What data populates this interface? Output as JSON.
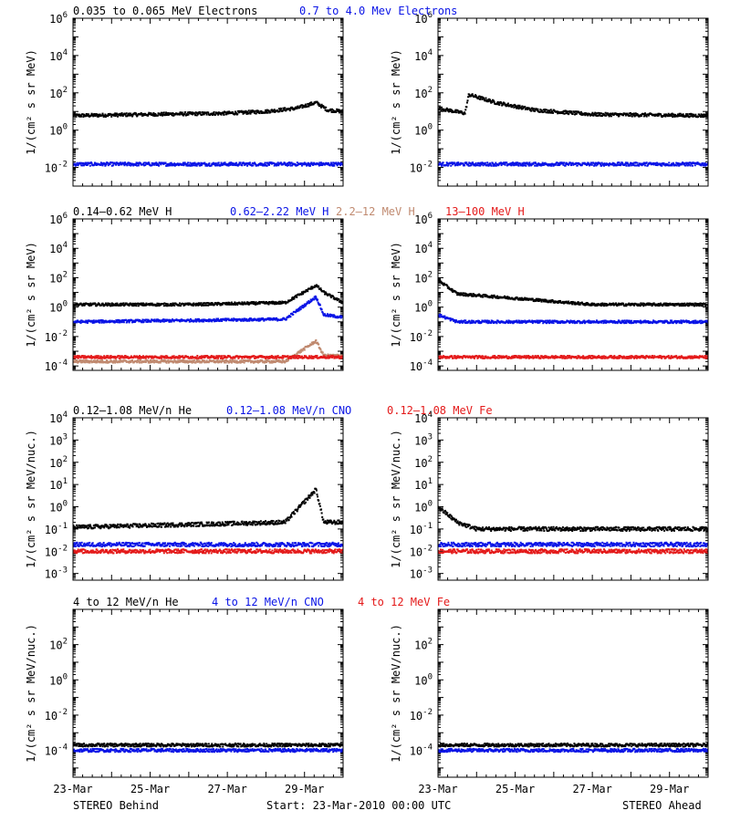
{
  "colors": {
    "black": "#000000",
    "blue": "#0a14e6",
    "tan": "#c08a70",
    "red": "#e41a1a"
  },
  "rows": [
    {
      "labels": [
        {
          "text": "0.035 to 0.065 MeV Electrons",
          "color": "black"
        },
        {
          "text": "0.7 to 4.0 Mev Electrons",
          "color": "blue"
        }
      ],
      "ylabel": "1/(cm² s sr MeV)"
    },
    {
      "labels": [
        {
          "text": "0.14–0.62 MeV H",
          "color": "black"
        },
        {
          "text": "0.62–2.22 MeV H",
          "color": "blue"
        },
        {
          "text": "2.2–12 MeV H",
          "color": "tan"
        },
        {
          "text": "13–100 MeV H",
          "color": "red"
        }
      ],
      "ylabel": "1/(cm² s sr MeV)"
    },
    {
      "labels": [
        {
          "text": "0.12–1.08 MeV/n He",
          "color": "black"
        },
        {
          "text": "0.12–1.08 MeV/n CNO",
          "color": "blue"
        },
        {
          "text": "0.12–1.08 MeV Fe",
          "color": "red"
        }
      ],
      "ylabel": "1/(cm² s sr MeV/nuc.)"
    },
    {
      "labels": [
        {
          "text": "4 to 12 MeV/n He",
          "color": "black"
        },
        {
          "text": "4 to 12 MeV/n CNO",
          "color": "blue"
        },
        {
          "text": "4 to 12 MeV Fe",
          "color": "red"
        }
      ],
      "ylabel": "1/(cm² s sr MeV/nuc.)"
    }
  ],
  "footer": {
    "left": "STEREO Behind",
    "center": "Start: 23-Mar-2010 00:00 UTC",
    "right": "STEREO Ahead"
  },
  "chart_data": [
    {
      "type": "scatter",
      "spacecraft": "STEREO Behind",
      "row": 0,
      "yscale": "log",
      "ylim": [
        0.001,
        1000000
      ],
      "xlim": [
        "23-Mar-2010",
        "30-Mar-2010"
      ],
      "xticks": [
        "23-Mar",
        "25-Mar",
        "27-Mar",
        "29-Mar"
      ],
      "ytick_labels": [
        {
          "v": 0.01,
          "b": "10",
          "e": "-2"
        },
        {
          "v": 1,
          "b": "10",
          "e": "0"
        },
        {
          "v": 100.0,
          "b": "10",
          "e": "2"
        },
        {
          "v": 10000.0,
          "b": "10",
          "e": "4"
        },
        {
          "v": 1000000.0,
          "b": "10",
          "e": "6"
        }
      ],
      "series": [
        {
          "name": "0.035 to 0.065 MeV Electrons",
          "color": "black",
          "points": [
            [
              0,
              6
            ],
            [
              2,
              7
            ],
            [
              4,
              8
            ],
            [
              5,
              10
            ],
            [
              5.8,
              15
            ],
            [
              6.3,
              30
            ],
            [
              6.6,
              12
            ],
            [
              7,
              10
            ]
          ]
        },
        {
          "name": "0.7 to 4.0 Mev Electrons",
          "color": "blue",
          "points": [
            [
              0,
              0.015
            ],
            [
              7,
              0.015
            ]
          ]
        }
      ]
    },
    {
      "type": "scatter",
      "spacecraft": "STEREO Ahead",
      "row": 0,
      "yscale": "log",
      "ylim": [
        0.001,
        1000000
      ],
      "xlim": [
        "23-Mar-2010",
        "30-Mar-2010"
      ],
      "xticks": [
        "23-Mar",
        "25-Mar",
        "27-Mar",
        "29-Mar"
      ],
      "ytick_labels": [
        {
          "v": 0.01,
          "b": "10",
          "e": "-2"
        },
        {
          "v": 1,
          "b": "10",
          "e": "0"
        },
        {
          "v": 100.0,
          "b": "10",
          "e": "2"
        },
        {
          "v": 10000.0,
          "b": "10",
          "e": "4"
        },
        {
          "v": 1000000.0,
          "b": "10",
          "e": "6"
        }
      ],
      "series": [
        {
          "name": "0.035 to 0.065 MeV Electrons",
          "color": "black",
          "points": [
            [
              0,
              15
            ],
            [
              0.7,
              8
            ],
            [
              0.8,
              80
            ],
            [
              1.5,
              30
            ],
            [
              2.5,
              12
            ],
            [
              4,
              7
            ],
            [
              7,
              6
            ]
          ]
        },
        {
          "name": "0.7 to 4.0 Mev Electrons",
          "color": "blue",
          "points": [
            [
              0,
              0.015
            ],
            [
              7,
              0.015
            ]
          ]
        }
      ]
    },
    {
      "type": "scatter",
      "spacecraft": "STEREO Behind",
      "row": 1,
      "yscale": "log",
      "ylim": [
        5e-05,
        1000000
      ],
      "xlim": [
        "23-Mar-2010",
        "30-Mar-2010"
      ],
      "xticks": [
        "23-Mar",
        "25-Mar",
        "27-Mar",
        "29-Mar"
      ],
      "ytick_labels": [
        {
          "v": 0.0001,
          "b": "10",
          "e": "-4"
        },
        {
          "v": 0.01,
          "b": "10",
          "e": "-2"
        },
        {
          "v": 1,
          "b": "10",
          "e": "0"
        },
        {
          "v": 100.0,
          "b": "10",
          "e": "2"
        },
        {
          "v": 10000.0,
          "b": "10",
          "e": "4"
        },
        {
          "v": 1000000.0,
          "b": "10",
          "e": "6"
        }
      ],
      "series": [
        {
          "name": "0.14–0.62 MeV H",
          "color": "black",
          "points": [
            [
              0,
              1.5
            ],
            [
              3,
              1.5
            ],
            [
              5.5,
              2
            ],
            [
              6.3,
              30
            ],
            [
              6.5,
              10
            ],
            [
              7,
              2
            ]
          ]
        },
        {
          "name": "0.62–2.22 MeV H",
          "color": "blue",
          "points": [
            [
              0,
              0.1
            ],
            [
              5.5,
              0.15
            ],
            [
              6.3,
              5
            ],
            [
              6.5,
              0.3
            ],
            [
              7,
              0.2
            ]
          ]
        },
        {
          "name": "2.2–12 MeV H",
          "color": "tan",
          "points": [
            [
              0,
              0.0002
            ],
            [
              5.5,
              0.0002
            ],
            [
              6.3,
              0.005
            ],
            [
              6.5,
              0.0005
            ],
            [
              7,
              0.0005
            ]
          ]
        },
        {
          "name": "13–100 MeV H",
          "color": "red",
          "points": [
            [
              0,
              0.0004
            ],
            [
              7,
              0.0004
            ]
          ]
        }
      ]
    },
    {
      "type": "scatter",
      "spacecraft": "STEREO Ahead",
      "row": 1,
      "yscale": "log",
      "ylim": [
        5e-05,
        1000000
      ],
      "xlim": [
        "23-Mar-2010",
        "30-Mar-2010"
      ],
      "xticks": [
        "23-Mar",
        "25-Mar",
        "27-Mar",
        "29-Mar"
      ],
      "ytick_labels": [
        {
          "v": 0.0001,
          "b": "10",
          "e": "-4"
        },
        {
          "v": 0.01,
          "b": "10",
          "e": "-2"
        },
        {
          "v": 1,
          "b": "10",
          "e": "0"
        },
        {
          "v": 100.0,
          "b": "10",
          "e": "2"
        },
        {
          "v": 10000.0,
          "b": "10",
          "e": "4"
        },
        {
          "v": 1000000.0,
          "b": "10",
          "e": "6"
        }
      ],
      "series": [
        {
          "name": "0.14–0.62 MeV H",
          "color": "black",
          "points": [
            [
              0,
              70
            ],
            [
              0.5,
              8
            ],
            [
              2,
              4
            ],
            [
              4,
              1.5
            ],
            [
              7,
              1.5
            ]
          ]
        },
        {
          "name": "0.62–2.22 MeV H",
          "color": "blue",
          "points": [
            [
              0,
              0.3
            ],
            [
              0.5,
              0.1
            ],
            [
              7,
              0.1
            ]
          ]
        },
        {
          "name": "13–100 MeV H",
          "color": "red",
          "points": [
            [
              0,
              0.0004
            ],
            [
              7,
              0.0004
            ]
          ]
        }
      ]
    },
    {
      "type": "scatter",
      "spacecraft": "STEREO Behind",
      "row": 2,
      "yscale": "log",
      "ylim": [
        0.0005,
        10000
      ],
      "xlim": [
        "23-Mar-2010",
        "30-Mar-2010"
      ],
      "xticks": [
        "23-Mar",
        "25-Mar",
        "27-Mar",
        "29-Mar"
      ],
      "ytick_labels": [
        {
          "v": 0.001,
          "b": "10",
          "e": "-3"
        },
        {
          "v": 0.01,
          "b": "10",
          "e": "-2"
        },
        {
          "v": 0.1,
          "b": "10",
          "e": "-1"
        },
        {
          "v": 1,
          "b": "10",
          "e": "0"
        },
        {
          "v": 10.0,
          "b": "10",
          "e": "1"
        },
        {
          "v": 100.0,
          "b": "10",
          "e": "2"
        },
        {
          "v": 1000.0,
          "b": "10",
          "e": "3"
        },
        {
          "v": 10000.0,
          "b": "10",
          "e": "4"
        }
      ],
      "series": [
        {
          "name": "0.12–1.08 MeV/n He",
          "color": "black",
          "points": [
            [
              0,
              0.12
            ],
            [
              5.5,
              0.2
            ],
            [
              6.3,
              6
            ],
            [
              6.5,
              0.2
            ],
            [
              7,
              0.2
            ]
          ]
        },
        {
          "name": "0.12–1.08 MeV/n CNO",
          "color": "blue",
          "points": [
            [
              0,
              0.02
            ],
            [
              7,
              0.02
            ]
          ]
        },
        {
          "name": "0.12–1.08 MeV Fe",
          "color": "red",
          "points": [
            [
              0,
              0.01
            ],
            [
              7,
              0.01
            ]
          ]
        }
      ]
    },
    {
      "type": "scatter",
      "spacecraft": "STEREO Ahead",
      "row": 2,
      "yscale": "log",
      "ylim": [
        0.0005,
        10000
      ],
      "xlim": [
        "23-Mar-2010",
        "30-Mar-2010"
      ],
      "xticks": [
        "23-Mar",
        "25-Mar",
        "27-Mar",
        "29-Mar"
      ],
      "ytick_labels": [
        {
          "v": 0.001,
          "b": "10",
          "e": "-3"
        },
        {
          "v": 0.01,
          "b": "10",
          "e": "-2"
        },
        {
          "v": 0.1,
          "b": "10",
          "e": "-1"
        },
        {
          "v": 1,
          "b": "10",
          "e": "0"
        },
        {
          "v": 10.0,
          "b": "10",
          "e": "1"
        },
        {
          "v": 100.0,
          "b": "10",
          "e": "2"
        },
        {
          "v": 1000.0,
          "b": "10",
          "e": "3"
        },
        {
          "v": 10000.0,
          "b": "10",
          "e": "4"
        }
      ],
      "series": [
        {
          "name": "0.12–1.08 MeV/n He",
          "color": "black",
          "points": [
            [
              0,
              1
            ],
            [
              0.5,
              0.2
            ],
            [
              1,
              0.1
            ],
            [
              7,
              0.1
            ]
          ]
        },
        {
          "name": "0.12–1.08 MeV/n CNO",
          "color": "blue",
          "points": [
            [
              0,
              0.02
            ],
            [
              7,
              0.02
            ]
          ]
        },
        {
          "name": "0.12–1.08 MeV Fe",
          "color": "red",
          "points": [
            [
              0,
              0.01
            ],
            [
              7,
              0.01
            ]
          ]
        }
      ]
    },
    {
      "type": "scatter",
      "spacecraft": "STEREO Behind",
      "row": 3,
      "yscale": "log",
      "ylim": [
        3e-06,
        10000
      ],
      "xlim": [
        "23-Mar-2010",
        "30-Mar-2010"
      ],
      "xticks": [
        "23-Mar",
        "25-Mar",
        "27-Mar",
        "29-Mar"
      ],
      "ytick_labels": [
        {
          "v": 0.0001,
          "b": "10",
          "e": "-4"
        },
        {
          "v": 0.01,
          "b": "10",
          "e": "-2"
        },
        {
          "v": 1,
          "b": "10",
          "e": "0"
        },
        {
          "v": 100.0,
          "b": "10",
          "e": "2"
        }
      ],
      "series": [
        {
          "name": "4 to 12 MeV/n He",
          "color": "black",
          "points": [
            [
              0,
              0.0002
            ],
            [
              7,
              0.0002
            ]
          ]
        },
        {
          "name": "4 to 12 MeV/n CNO",
          "color": "blue",
          "points": [
            [
              0,
              0.0001
            ],
            [
              7,
              0.0001
            ]
          ]
        }
      ]
    },
    {
      "type": "scatter",
      "spacecraft": "STEREO Ahead",
      "row": 3,
      "yscale": "log",
      "ylim": [
        3e-06,
        10000
      ],
      "xlim": [
        "23-Mar-2010",
        "30-Mar-2010"
      ],
      "xticks": [
        "23-Mar",
        "25-Mar",
        "27-Mar",
        "29-Mar"
      ],
      "ytick_labels": [
        {
          "v": 0.0001,
          "b": "10",
          "e": "-4"
        },
        {
          "v": 0.01,
          "b": "10",
          "e": "-2"
        },
        {
          "v": 1,
          "b": "10",
          "e": "0"
        },
        {
          "v": 100.0,
          "b": "10",
          "e": "2"
        }
      ],
      "series": [
        {
          "name": "4 to 12 MeV/n He",
          "color": "black",
          "points": [
            [
              0,
              0.0002
            ],
            [
              7,
              0.0002
            ]
          ]
        },
        {
          "name": "4 to 12 MeV/n CNO",
          "color": "blue",
          "points": [
            [
              0,
              0.0001
            ],
            [
              7,
              0.0001
            ]
          ]
        }
      ]
    }
  ]
}
